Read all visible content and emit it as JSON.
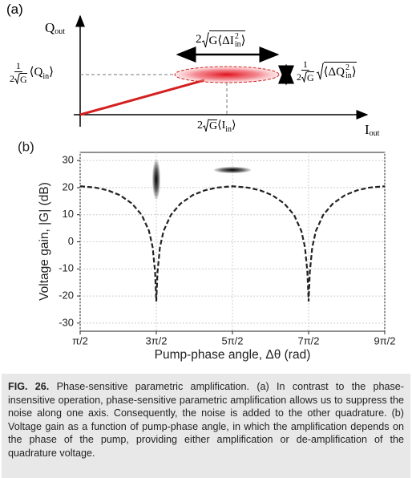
{
  "panel_a": {
    "label": "(a)",
    "y_axis": {
      "symbol": "Q",
      "subscript": "out"
    },
    "x_axis": {
      "symbol": "I",
      "subscript": "out"
    },
    "width_label": {
      "prefix": "2",
      "radicand": "G⟨ΔI",
      "sup": "2",
      "sub": "in",
      "close": "⟩"
    },
    "q_mean_label": {
      "numerator": "1",
      "denominator_prefix": "2",
      "denominator_radicand": "G",
      "mean": "⟨Q",
      "sub": "in",
      "close": "⟩"
    },
    "height_label": {
      "numerator": "1",
      "denominator_prefix": "2",
      "denominator_radicand": "G",
      "radicand": "⟨ΔQ",
      "sup": "2",
      "sub": "in",
      "close": "⟩"
    },
    "i_mean_label": {
      "prefix": "2",
      "radicand": "G",
      "mean": "⟨I",
      "sub": "in",
      "close": "⟩"
    }
  },
  "chart_data": {
    "type": "line",
    "label": "(b)",
    "x_label": "Pump-phase angle, Δθ (rad)",
    "y_label": "Voltage gain, |G| (dB)",
    "x": [
      1.571,
      2.212,
      2.712,
      3.212,
      3.712,
      4.112,
      4.412,
      4.562,
      4.662,
      4.692,
      4.712,
      4.732,
      4.762,
      4.862,
      5.012,
      5.312,
      5.712,
      6.212,
      6.712,
      7.212,
      7.854,
      8.496,
      8.996,
      9.496,
      9.996,
      10.396,
      10.696,
      10.846,
      10.946,
      10.976,
      10.996,
      11.016,
      11.046,
      11.146,
      11.296,
      11.596,
      11.996,
      12.496,
      12.996,
      13.496,
      14.137
    ],
    "values": [
      20.5,
      20.0,
      19.0,
      17.2,
      14.1,
      9.9,
      4.0,
      -2.0,
      -11.2,
      -17.6,
      -22.0,
      -17.6,
      -11.2,
      -2.0,
      4.0,
      9.9,
      14.1,
      17.2,
      19.0,
      20.0,
      20.5,
      20.0,
      19.0,
      17.2,
      14.1,
      9.9,
      4.0,
      -2.0,
      -11.2,
      -17.6,
      -22.0,
      -17.6,
      -11.2,
      -2.0,
      4.0,
      9.9,
      14.1,
      17.2,
      19.0,
      20.0,
      20.5
    ],
    "color": "#222222",
    "line_style": "dashed",
    "noise_ellipses": [
      {
        "x": 4.712,
        "y": 23,
        "width": 0.33,
        "height": 14.7
      },
      {
        "x": 7.854,
        "y": 26.5,
        "width": 1.55,
        "height": 2.4
      }
    ],
    "noise_color": "#e02020",
    "xlim": [
      1.5708,
      14.1372
    ],
    "xticks": [
      {
        "value": 1.5708,
        "label": "π/2"
      },
      {
        "value": 4.7124,
        "label": "3π/2"
      },
      {
        "value": 7.854,
        "label": "5π/2"
      },
      {
        "value": 10.9956,
        "label": "7π/2"
      },
      {
        "value": 14.1372,
        "label": "9π/2"
      }
    ],
    "ylim": [
      -33,
      33
    ],
    "yticks": [
      -30,
      -20,
      -10,
      0,
      10,
      20,
      30
    ],
    "grid": true
  },
  "caption": {
    "label": "FIG. 26.",
    "text": "Phase-sensitive parametric amplification. (a) In contrast to the phase-insensitive operation, phase-sensitive parametric amplification allows us to suppress the noise along one axis. Consequently, the noise is added to the other quadrature. (b) Voltage gain as a function of pump-phase angle, in which the amplification depends on the phase of the pump, providing either amplification or de-amplification of the quadrature voltage."
  }
}
